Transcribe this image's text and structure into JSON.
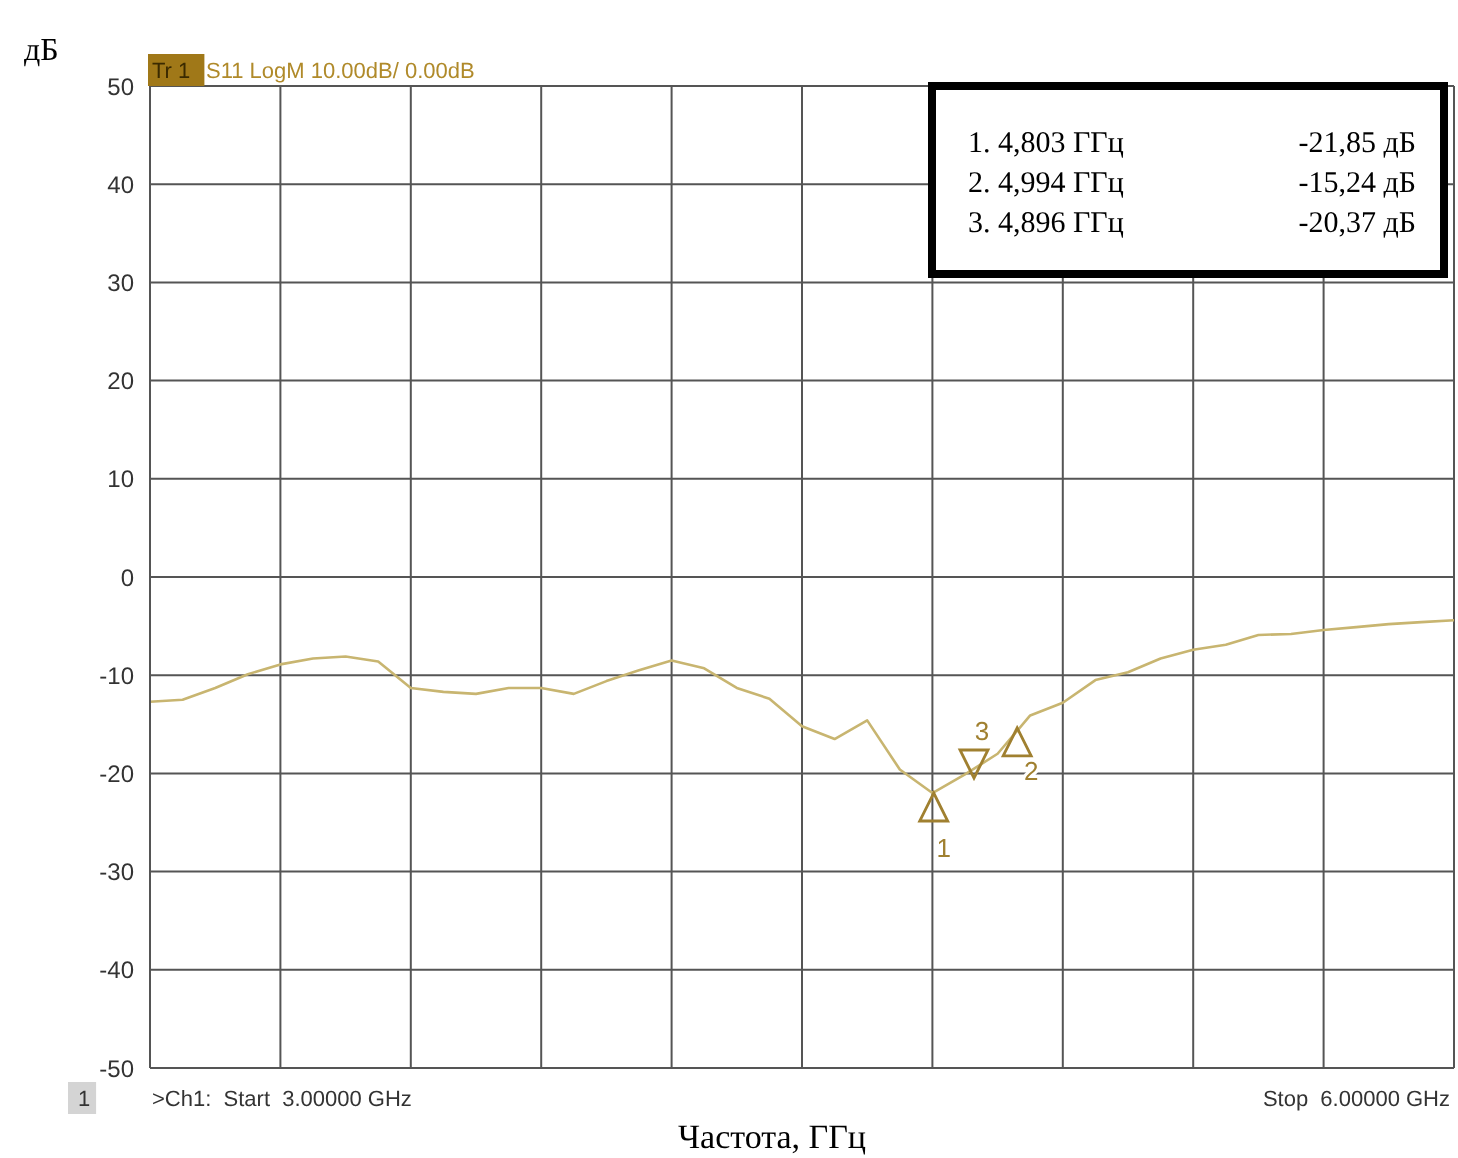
{
  "chart_data": {
    "type": "line",
    "ylabel": "дБ",
    "xlabel": "Частота, ГГц",
    "categories": [
      null,
      null,
      null,
      null,
      null,
      null,
      null,
      null,
      null,
      null,
      null,
      null,
      null,
      null,
      null,
      null,
      null,
      null,
      null,
      null,
      null,
      null,
      null,
      null,
      null,
      null,
      null,
      null,
      null,
      null,
      null,
      null,
      null,
      null,
      null,
      null,
      null,
      null,
      null,
      null,
      null
    ],
    "ylim": [
      -50,
      50
    ],
    "yticks": [
      -50,
      -40,
      -30,
      -20,
      -10,
      0,
      10,
      20,
      30,
      40,
      50
    ],
    "tick_labels": "y",
    "grid": true,
    "marker": "none",
    "series": [
      {
        "color": "#c8b570",
        "values": [
          -12.7,
          -12.5,
          -11.3,
          -9.9,
          -8.9,
          -8.3,
          -8.1,
          -8.6,
          -11.3,
          -11.7,
          -11.9,
          -11.3,
          -11.3,
          -11.9,
          -10.6,
          -9.5,
          -8.5,
          -9.3,
          -11.3,
          -12.4,
          -15.2,
          -16.5,
          -14.6,
          -19.6,
          -22.0,
          -20.1,
          -18.0,
          -14.1,
          -12.8,
          -10.5,
          -9.7,
          -8.3,
          -7.4,
          -6.9,
          -5.9,
          -5.8,
          -5.4,
          -5.1,
          -4.8,
          -4.6,
          -4.4
        ]
      }
    ],
    "annotations": [
      "Tr 1",
      "S11 LogM 10.00dB/ 0.00dB",
      "1",
      ">Ch1:  Start  3.00000 GHz",
      "Stop  6.00000 GHz",
      "1. 4,803 ГГц",
      "-21,85 дБ",
      "2. 4,994 ГГц",
      "-15,24 дБ",
      "3. 4,896 ГГц",
      "-20,37 дБ",
      {
        "text": "1",
        "y": -21.85
      },
      {
        "text": "2",
        "y": -15.24
      },
      "3"
    ]
  }
}
